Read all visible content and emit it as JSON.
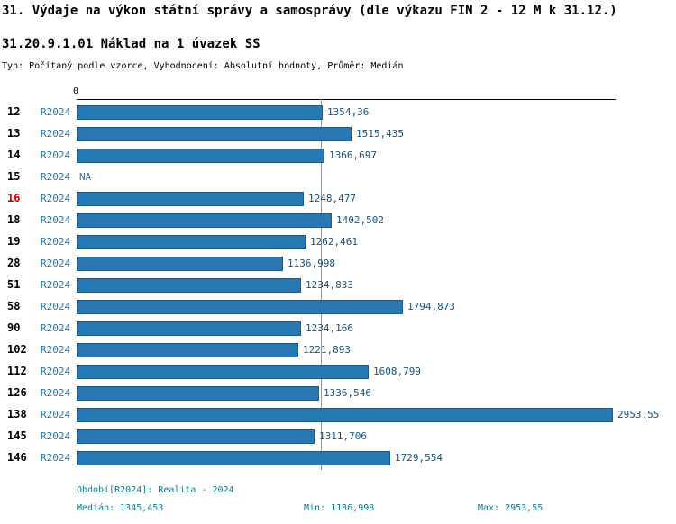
{
  "title": "31. Výdaje na výkon státní správy a samosprávy (dle výkazu FIN 2 - 12 M k 31.12.)",
  "subtitle": "31.20.9.1.01 Náklad na 1 úvazek SS",
  "meta": "Typ: Počítaný podle vzorce, Vyhodnocení: Absolutní hodnoty, Průměr: Medián",
  "chart_data": {
    "type": "bar",
    "orientation": "horizontal",
    "title": "31.20.9.1.01 Náklad na 1 úvazek SS",
    "axis_zero_label": "0",
    "series_label": "R2024",
    "na_label": "NA",
    "highlight_category": "16",
    "categories": [
      "12",
      "13",
      "14",
      "15",
      "16",
      "18",
      "19",
      "28",
      "51",
      "58",
      "90",
      "102",
      "112",
      "126",
      "138",
      "145",
      "146"
    ],
    "values": [
      1354.36,
      1515.435,
      1366.697,
      null,
      1248.477,
      1402.502,
      1262.461,
      1136.998,
      1234.833,
      1794.873,
      1234.166,
      1221.893,
      1608.799,
      1336.546,
      2953.55,
      1311.706,
      1729.554
    ],
    "value_labels": [
      "1354,36",
      "1515,435",
      "1366,697",
      "NA",
      "1248,477",
      "1402,502",
      "1262,461",
      "1136,998",
      "1234,833",
      "1794,873",
      "1234,166",
      "1221,893",
      "1608,799",
      "1336,546",
      "2953,55",
      "1311,706",
      "1729,554"
    ],
    "xlim": [
      0,
      2953.55
    ],
    "median": 1345.453,
    "min": 1136.998,
    "max": 2953.55,
    "bar_color": "#2878b4",
    "bar_border_color": "#1d5f92",
    "series_color": "#1f77b4",
    "value_color": "#17537e",
    "highlight_color": "#cc0000",
    "median_line_color": "#9a9a9a",
    "grid": false,
    "legend_position": "none"
  },
  "footer": {
    "period": "Období[R2024]: Realita - 2024",
    "median": "Medián: 1345,453",
    "min": "Min: 1136,998",
    "max": "Max: 2953,55"
  }
}
